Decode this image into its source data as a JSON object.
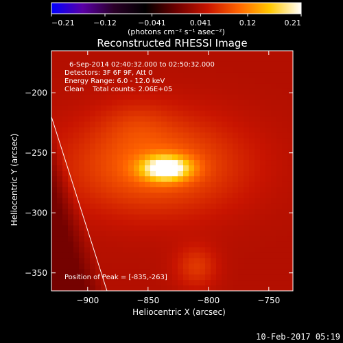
{
  "chart_data": {
    "type": "heatmap",
    "title": "Reconstructed RHESSI Image",
    "xlabel": "Heliocentric X (arcsec)",
    "ylabel": "Heliocentric Y (arcsec)",
    "xlim": [
      -930,
      -730
    ],
    "ylim": [
      -365,
      -165
    ],
    "x_ticks": [
      -900,
      -850,
      -800,
      -750
    ],
    "x_tick_labels": [
      "−900",
      "−850",
      "−800",
      "−750"
    ],
    "y_ticks": [
      -200,
      -250,
      -300,
      -350
    ],
    "y_tick_labels": [
      "−200",
      "−250",
      "−300",
      "−350"
    ],
    "colorbar": {
      "range": [
        -0.21,
        0.21
      ],
      "ticks": [
        -0.21,
        -0.12,
        -0.041,
        0.041,
        0.12,
        0.21
      ],
      "tick_labels": [
        "−0.21",
        "−0.12",
        "−0.041",
        "0.041",
        "0.12",
        "0.21"
      ],
      "colormap": [
        "#0000ff",
        "#5a00a6",
        "#2a0028",
        "#000000",
        "#6e0000",
        "#c81400",
        "#ff6400",
        "#ffc800",
        "#ffffff"
      ],
      "label": "(photons cm⁻² s⁻¹ asec⁻²)"
    },
    "annotations": [
      "6-Sep-2014 02:40:32.000 to 02:50:32.000",
      "Detectors: 3F 6F 9F, Att 0",
      "Energy Range: 6.0 - 12.0 keV",
      "Clean    Total counts: 2.06E+05"
    ],
    "peak_label": "Position of Peak = [-835,-263]",
    "peak": {
      "x": -835,
      "y": -263,
      "value": 0.21
    },
    "sources": [
      {
        "x": -835,
        "y": -263,
        "sx": 14,
        "sy": 7,
        "amp": 0.155
      },
      {
        "x": -845,
        "y": -260,
        "sx": 50,
        "sy": 28,
        "amp": 0.065
      },
      {
        "x": -810,
        "y": -345,
        "sx": 12,
        "sy": 12,
        "amp": 0.035
      },
      {
        "x": -860,
        "y": -225,
        "sx": 20,
        "sy": 14,
        "amp": 0.015
      }
    ],
    "background": 0.04,
    "limb": [
      [
        -930,
        -220
      ],
      [
        -884,
        -365
      ]
    ]
  },
  "footer_timestamp": "10-Feb-2017 05:19"
}
